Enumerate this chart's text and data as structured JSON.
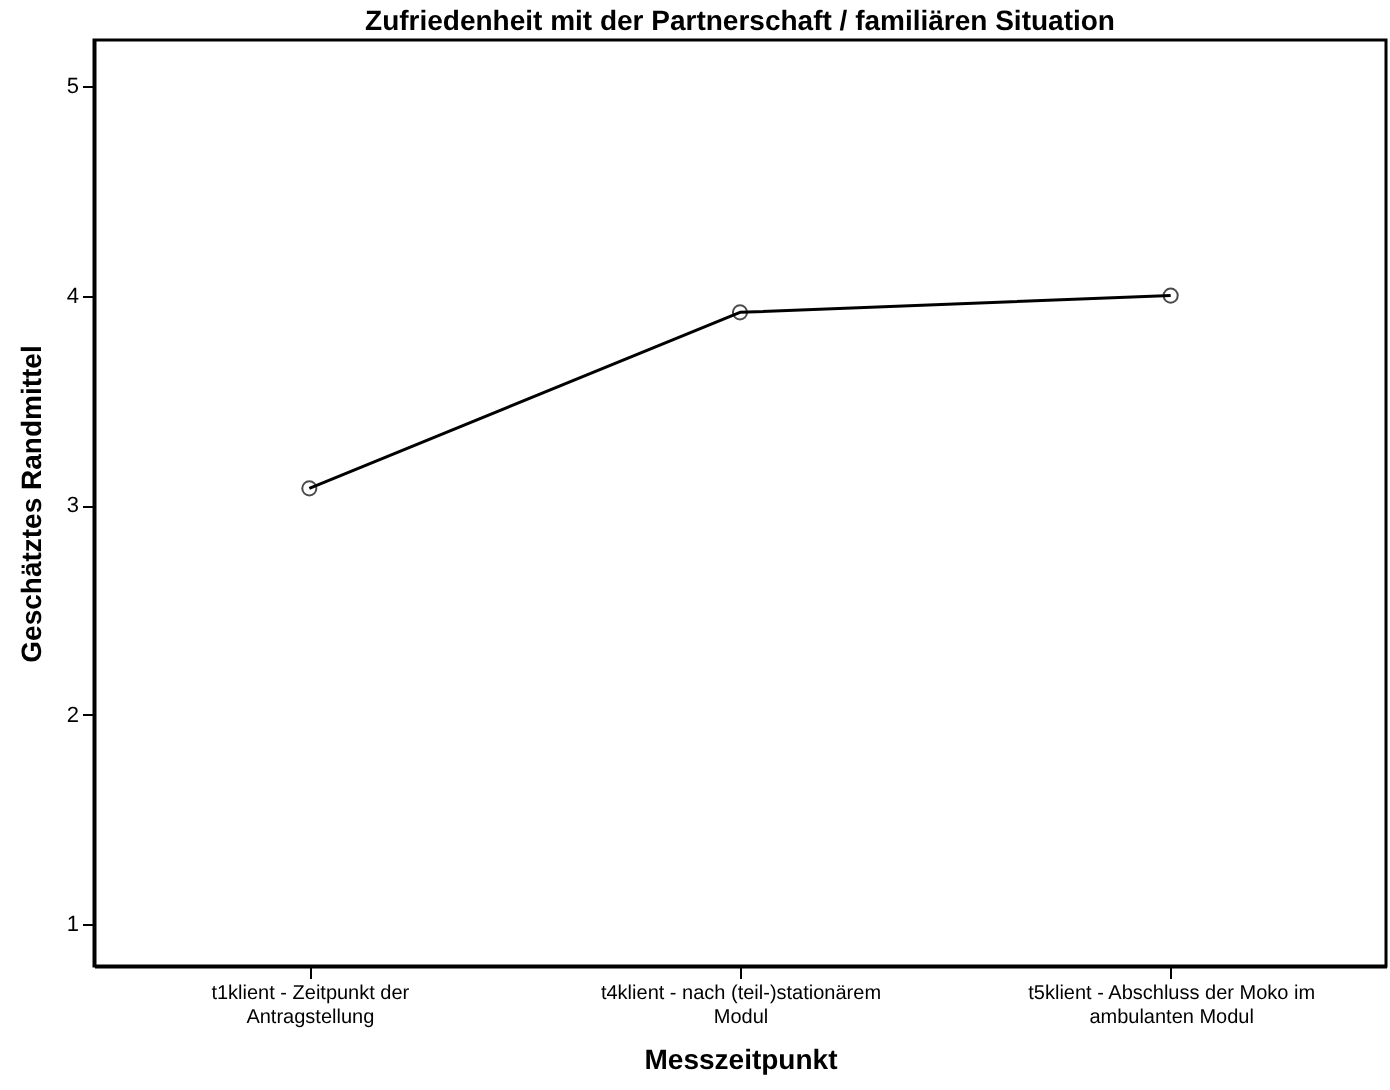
{
  "chart_data": {
    "type": "line",
    "title": "Zufriedenheit mit der Partnerschaft / familiären Situation",
    "xlabel": "Messzeitpunkt",
    "ylabel": "Geschätztes Randmittel",
    "categories": [
      "t1klient - Zeitpunkt der Antragstellung",
      "t4klient - nach (teil-)stationärem Modul",
      "t5klient -  Abschluss der Moko im ambulanten Modul"
    ],
    "series": [
      {
        "color": "#000000",
        "values": [
          3.08,
          3.92,
          4.0
        ]
      }
    ],
    "ylim": [
      0.8,
      5.22
    ],
    "yticks": [
      1,
      2,
      3,
      4,
      5
    ],
    "grid": false,
    "marker": "circle",
    "line_style": "solid"
  }
}
